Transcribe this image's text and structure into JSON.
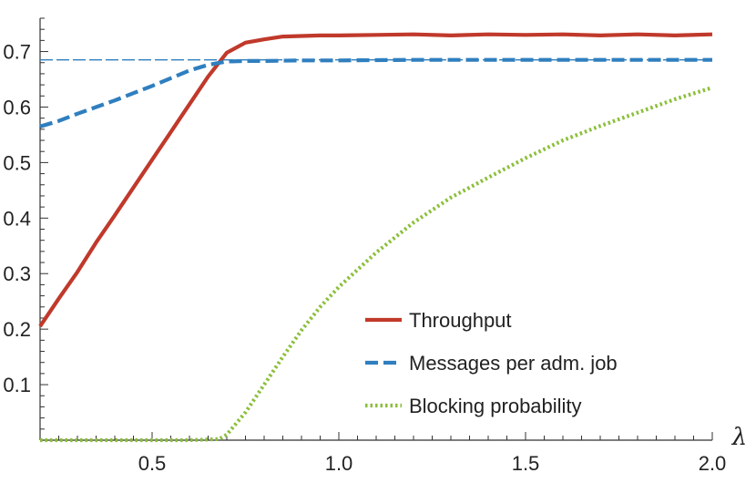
{
  "chart_data": {
    "type": "line",
    "xlabel": "λ",
    "ylabel": "",
    "xlim": [
      0.2,
      2.0
    ],
    "ylim": [
      0.0,
      0.76
    ],
    "x_ticks": [
      "0.5",
      "1.0",
      "1.5",
      "2.0"
    ],
    "y_ticks": [
      "0.1",
      "0.2",
      "0.3",
      "0.4",
      "0.5",
      "0.6",
      "0.7"
    ],
    "legend_position": "bottom-right",
    "reference_line": {
      "y": 0.685,
      "color": "#2f7fbf",
      "style": "thin-dashed"
    },
    "series": [
      {
        "name": "Throughput",
        "color": "#c0392b",
        "style": "solid",
        "points": [
          [
            0.2,
            0.205
          ],
          [
            0.25,
            0.255
          ],
          [
            0.3,
            0.303
          ],
          [
            0.35,
            0.356
          ],
          [
            0.4,
            0.405
          ],
          [
            0.45,
            0.455
          ],
          [
            0.5,
            0.505
          ],
          [
            0.55,
            0.555
          ],
          [
            0.6,
            0.605
          ],
          [
            0.65,
            0.655
          ],
          [
            0.7,
            0.698
          ],
          [
            0.75,
            0.716
          ],
          [
            0.8,
            0.722
          ],
          [
            0.85,
            0.727
          ],
          [
            0.9,
            0.728
          ],
          [
            0.95,
            0.729
          ],
          [
            1.0,
            0.729
          ],
          [
            1.1,
            0.73
          ],
          [
            1.2,
            0.731
          ],
          [
            1.3,
            0.729
          ],
          [
            1.4,
            0.731
          ],
          [
            1.5,
            0.73
          ],
          [
            1.6,
            0.731
          ],
          [
            1.7,
            0.729
          ],
          [
            1.8,
            0.731
          ],
          [
            1.9,
            0.729
          ],
          [
            2.0,
            0.731
          ]
        ]
      },
      {
        "name": "Messages per adm. job",
        "color": "#2f7fbf",
        "style": "dashed",
        "points": [
          [
            0.2,
            0.565
          ],
          [
            0.25,
            0.575
          ],
          [
            0.3,
            0.588
          ],
          [
            0.35,
            0.6
          ],
          [
            0.4,
            0.612
          ],
          [
            0.45,
            0.625
          ],
          [
            0.5,
            0.638
          ],
          [
            0.55,
            0.652
          ],
          [
            0.6,
            0.666
          ],
          [
            0.65,
            0.676
          ],
          [
            0.7,
            0.682
          ],
          [
            0.75,
            0.683
          ],
          [
            0.8,
            0.683
          ],
          [
            0.9,
            0.684
          ],
          [
            1.0,
            0.684
          ],
          [
            1.2,
            0.685
          ],
          [
            1.4,
            0.685
          ],
          [
            1.6,
            0.685
          ],
          [
            1.8,
            0.685
          ],
          [
            2.0,
            0.685
          ]
        ]
      },
      {
        "name": "Blocking probability",
        "color": "#8bbf3a",
        "style": "dotted",
        "points": [
          [
            0.2,
            0.0
          ],
          [
            0.4,
            0.0
          ],
          [
            0.6,
            0.0
          ],
          [
            0.68,
            0.002
          ],
          [
            0.7,
            0.01
          ],
          [
            0.75,
            0.05
          ],
          [
            0.8,
            0.1
          ],
          [
            0.85,
            0.15
          ],
          [
            0.9,
            0.198
          ],
          [
            0.95,
            0.24
          ],
          [
            1.0,
            0.276
          ],
          [
            1.1,
            0.338
          ],
          [
            1.2,
            0.392
          ],
          [
            1.3,
            0.437
          ],
          [
            1.4,
            0.473
          ],
          [
            1.5,
            0.508
          ],
          [
            1.6,
            0.54
          ],
          [
            1.7,
            0.566
          ],
          [
            1.8,
            0.59
          ],
          [
            1.9,
            0.614
          ],
          [
            2.0,
            0.635
          ]
        ]
      }
    ]
  }
}
